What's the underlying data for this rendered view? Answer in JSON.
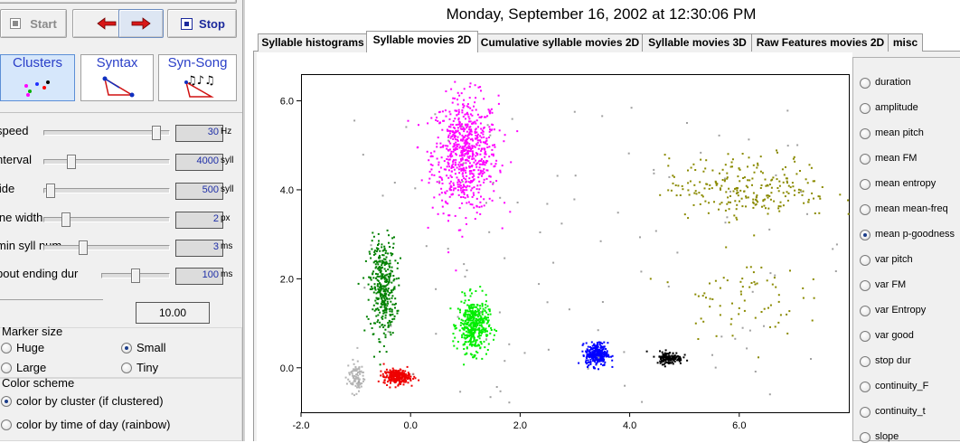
{
  "clock": "Monday, September 16, 2002  at  12:30:06 PM",
  "toolbar": {
    "start": "Start",
    "stop": "Stop"
  },
  "modes": [
    "Clusters",
    "Syntax",
    "Syn-Song"
  ],
  "sliders": [
    {
      "name": "speed",
      "value": "30",
      "unit": "Hz",
      "level": 0.92
    },
    {
      "name": "nterval",
      "value": "4000",
      "unit": "syll",
      "level": 0.2
    },
    {
      "name": "lide",
      "value": "500",
      "unit": "syll",
      "level": 0.02
    },
    {
      "name": "ine width",
      "value": "2",
      "unit": "px",
      "level": 0.15
    },
    {
      "name": "min syll num",
      "value": "3",
      "unit": "ms",
      "level": 0.3
    },
    {
      "name": "bout ending dur",
      "value": "100",
      "unit": "ms",
      "level": 0.5
    }
  ],
  "extra_value": "10.00",
  "marker": {
    "title": "Marker size",
    "options": [
      "Huge",
      "Small",
      "Large",
      "Tiny"
    ],
    "selected": "Small"
  },
  "color_scheme": {
    "title": "Color scheme",
    "options": [
      "color by cluster (if clustered)",
      "color by time of day (rainbow)"
    ],
    "selected": "color by cluster (if clustered)"
  },
  "tabs": [
    "Syllable histograms",
    "Syllable movies 2D",
    "Cumulative syllable movies 2D",
    "Syllable movies 3D",
    "Raw Features movies 2D",
    "misc"
  ],
  "active_tab": "Syllable movies 2D",
  "features": [
    "duration",
    "amplitude",
    "mean pitch",
    "mean FM",
    "mean entropy",
    "mean mean-freq",
    "mean p-goodness",
    "var pitch",
    "var FM",
    "var Entropy",
    "var good",
    "stop dur",
    "continuity_F",
    "continuity_t",
    "slope"
  ],
  "selected_feature": "mean p-goodness",
  "colors": {
    "accent": "#2a3fc8",
    "value_text": "#1f2fa8"
  },
  "chart_data": {
    "type": "scatter",
    "xlim": [
      -2.0,
      8.0
    ],
    "ylim": [
      -1.0,
      6.6
    ],
    "x_ticks": [
      -2.0,
      0.0,
      2.0,
      4.0,
      6.0
    ],
    "y_ticks": [
      0.0,
      2.0,
      4.0,
      6.0
    ],
    "x_tick_labels": [
      "-2.0",
      "0.0",
      "2.0",
      "4.0",
      "6.0"
    ],
    "y_tick_labels": [
      "0.0",
      "2.0",
      "4.0",
      "6.0"
    ],
    "grid": false,
    "clusters": [
      {
        "color": "#ff00ff",
        "center": [
          1.0,
          4.8
        ],
        "spread": [
          0.3,
          0.65
        ],
        "count": 700
      },
      {
        "color": "#008000",
        "center": [
          -0.5,
          1.8
        ],
        "spread": [
          0.12,
          0.55
        ],
        "count": 380
      },
      {
        "color": "#00ee00",
        "center": [
          1.15,
          0.95
        ],
        "spread": [
          0.14,
          0.3
        ],
        "count": 420
      },
      {
        "color": "#0000ff",
        "center": [
          3.4,
          0.3
        ],
        "spread": [
          0.1,
          0.13
        ],
        "count": 300
      },
      {
        "color": "#000000",
        "center": [
          4.72,
          0.22
        ],
        "spread": [
          0.12,
          0.07
        ],
        "count": 140
      },
      {
        "color": "#ee0000",
        "center": [
          -0.25,
          -0.2
        ],
        "spread": [
          0.12,
          0.08
        ],
        "count": 260
      },
      {
        "color": "#b4b4b4",
        "center": [
          -1.0,
          -0.2
        ],
        "spread": [
          0.08,
          0.18
        ],
        "count": 90
      },
      {
        "color": "#8a8a00",
        "center": [
          6.2,
          4.05
        ],
        "spread": [
          0.75,
          0.35
        ],
        "count": 240
      },
      {
        "color": "#8a8a00",
        "center": [
          6.0,
          1.6
        ],
        "spread": [
          0.55,
          0.45
        ],
        "count": 70
      }
    ],
    "noise": {
      "color": "#a0a0a0",
      "count": 110
    }
  }
}
